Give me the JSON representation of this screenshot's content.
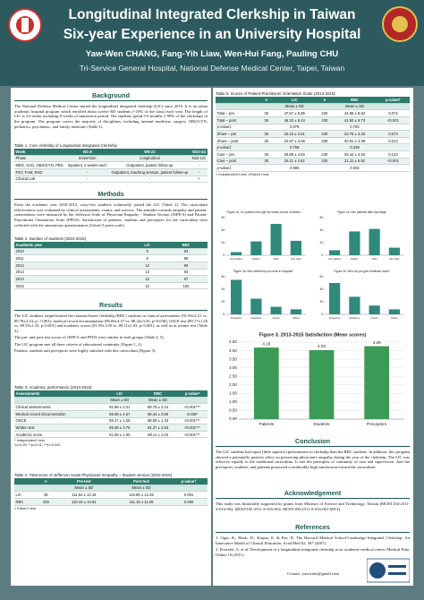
{
  "header": {
    "title_line1": "Longitudinal Integrated Clerkship in Taiwan",
    "title_line2": "Six-year Experience in an University Hospital",
    "authors": "Yaw-Wen CHANG, Fang-Yih Liaw, Wen-Hui Fang, Pauling CHU",
    "affiliation": "Tri-Service General Hospital, National Defense Medical Center, Taipei, Taiwan"
  },
  "background": {
    "heading": "Background",
    "text": "The National Defense Medical Center started the longitudinal integrated clerkship (LIC) since 2010. It is an urban academic hospital program which enrolled about twelve M5 students (~10% of the class) each year. The length of LIC is 24 weeks including 8 weeks of immersion period. The students spend 5-6 months (~90% of the clerkship) in the program. The program covers the majority of disciplines, including internal medicine, surgery, OBS/GYN, pediatrics, psychiatric, and family medicine (Table 1)."
  },
  "table1": {
    "caption": "Table 1. Core clerkship of Longitudinal Integrated Clerkship",
    "header": [
      "Week",
      "W1-8",
      "W9-22",
      "W23-24"
    ],
    "rows": [
      [
        "Phase",
        "Immersion",
        "Longitudinal",
        "Non-LIC"
      ],
      [
        "MED, SUG, OBS/GYN, PED",
        "Inpatient, 2 weeks each",
        "Outpatient, patient follow-up",
        "-"
      ],
      [
        "PSY, FAM, RAD",
        "-",
        "Outpatient, teaching session, patient follow-up",
        "-"
      ],
      [
        "Clinical Lab",
        "-",
        "-",
        "+"
      ]
    ]
  },
  "methods": {
    "heading": "Methods",
    "text": "From the academic year 2010-2015, sixty-five students voluntarily joined the LIC (Table 2). The curriculum effectiveness was evaluated by clinical assessments, exams, and surveys. The attitudes towards empathy and patient-centeredness were measured by the Jefferson Scale of Physician Empathy - Student Version (JSPE-S) and Patient-Practitioner Orientation Scale (PPOS). Satisfaction of patients, students and preceptors for the curriculum were collected with the anonymous questionnaires (Likert-5 point scale)."
  },
  "table2": {
    "caption": "Table 2. Number of students (2010-2015)",
    "header": [
      "Academic year",
      "LIC",
      "RBC"
    ],
    "rows": [
      [
        2010,
        9,
        84
      ],
      [
        2011,
        8,
        86
      ],
      [
        2012,
        12,
        96
      ],
      [
        2013,
        13,
        93
      ],
      [
        2014,
        12,
        97
      ],
      [
        2015,
        12,
        102
      ]
    ]
  },
  "results": {
    "heading": "Results",
    "paragraphs": [
      "The LIC students outperformed the rotation-based clerkship (RBC) students in clinical assessments (91.96±2.21 vs. 89.78±2.24, p< 0.001), medical record documentation (89.69±4.57 vs. 88.44±3.56, p=0.038), OSCE test (89.17±1.26 vs. 88.59±1.33, p<0.001) and academic scores (91.59±1.00 vs. 89.11±1.03, p<0.001), as well as in written test (Table 3).",
      "The pre- and post-test scores of JSPE-S and PPOS were similar in both groups (Table 4, 5).",
      "The LIC program met all three criteria of educational continuity (Figure 1, 2).",
      "Patients, students and preceptors were highly satisfied with this curriculum (Figure 3)."
    ]
  },
  "table3": {
    "caption": "Table 3. Academic performance (2010-2015)",
    "header": [
      "Assessments",
      "LIC",
      "RBC",
      "p-value*"
    ],
    "subheader": [
      null,
      "Mean ± SD",
      "Mean ± SD",
      null
    ],
    "rows": [
      [
        "Clinical assessments",
        "91.96 ± 2.21",
        "89.78 ± 2.24",
        "<0.001***"
      ],
      [
        "Medical record documentation",
        "89.69 ± 4.57",
        "88.44 ± 3.56",
        "0.038*"
      ],
      [
        "OSCE",
        "89.17 ± 1.26",
        "88.59 ± 1.33",
        "<0.001***"
      ],
      [
        "Written test",
        "89.39 ± 3.75",
        "84.37 ± 4.53",
        "<0.001***"
      ],
      [
        "Academic score",
        "91.59 ± 1.00",
        "89.11 ± 1.03",
        "<0.001***"
      ]
    ],
    "footnotes": [
      "* Independent t test",
      "*p<0.05; **p<0.01; ***p<0.001"
    ]
  },
  "table4": {
    "caption": "Table 4. Total score of Jefferson Scale Physicians' Empathy – Student version (2010-2015)",
    "header": [
      null,
      "n",
      "Pre-test",
      "Post-test",
      "p-value†"
    ],
    "subheader": [
      null,
      null,
      "Mean ± SD",
      "Mean ± SD",
      null
    ],
    "rows": [
      [
        "LIC",
        "48",
        "111.54 ± 12.16",
        "115.98 ± 12.46",
        "0.001"
      ],
      [
        "RBC",
        "439",
        "110.44 ± 10.81",
        "111.16 ± 11.06",
        "0.060"
      ]
    ],
    "footnotes": [
      "† Paired t test"
    ]
  },
  "table5": {
    "caption": "Table 5. Scores of Patient-Practitioner Orientation Scale (2013-2015)",
    "header": [
      null,
      "n",
      "LIC",
      "n",
      "RBC",
      "p-value†"
    ],
    "subheader": [
      null,
      null,
      "Mean ± SD",
      null,
      "Mean ± SD",
      null
    ],
    "rows": [
      [
        "Total – pre",
        "35",
        "47.57 ± 6.86",
        "230",
        "44.86 ± 8.63",
        "0.074"
      ],
      [
        "Total – post",
        "35",
        "46.20 ± 6.44",
        "230",
        "41.93 ± 9.73",
        "<0.001"
      ],
      [
        "p-value‡",
        null,
        "0.879",
        null,
        "0.782",
        null
      ],
      [
        "Share – pre",
        "35",
        "23.10 ± 3.51",
        "230",
        "22.75 ± 3.33",
        "0.573"
      ],
      [
        "Share – post",
        "35",
        "22.97 ± 3.56",
        "230",
        "20.81 ± 4.99",
        "0.013"
      ],
      [
        "p-value‡",
        null,
        "0.758",
        null,
        "0.239",
        null
      ],
      [
        "Care – pre",
        "35",
        "26.89 ± 4.84",
        "230",
        "25.44 ± 4.93",
        "0.123"
      ],
      [
        "Care – post",
        "35",
        "26.11 ± 4.62",
        "230",
        "21.11 ± 5.52",
        "<0.001"
      ],
      [
        "p-value‡",
        null,
        "0.906",
        null,
        "0.002",
        null
      ]
    ],
    "footnotes": [
      "† Independent t test; ‡Paired t test"
    ]
  },
  "chart_data": [
    {
      "type": "bar",
      "title": "Figure 1a. LIC patients through the whole course of illness",
      "categories": [
        "Very seldom",
        "Seldom",
        "Often",
        "Very often"
      ],
      "values": [
        5,
        22,
        50,
        23
      ],
      "color": "#2f8a7c",
      "ylim": [
        0,
        60
      ],
      "yticks": [
        0,
        20,
        40,
        60
      ],
      "grid": false
    },
    {
      "type": "bar",
      "title": "Figure 1b. See patients after discharge",
      "categories": [
        "Very seldom",
        "Seldom",
        "Often",
        "Very often"
      ],
      "values": [
        8,
        38,
        42,
        12
      ],
      "color": "#2f8a7c",
      "ylim": [
        0,
        60
      ],
      "yticks": [
        0,
        20,
        40,
        60
      ],
      "grid": false
    },
    {
      "type": "bar",
      "title": "Figure 2a. Who delivered you news in hospital?",
      "categories": [
        "Preceptors",
        "Residents",
        "Interns",
        "Others"
      ],
      "values": [
        55,
        25,
        12,
        8
      ],
      "color": "#2f8a7c",
      "ylim": [
        0,
        60
      ],
      "yticks": [
        0,
        20,
        40,
        60
      ],
      "grid": false
    },
    {
      "type": "bar",
      "title": "Figure 2b. Who do you give feedback most?",
      "categories": [
        "Preceptors",
        "Residents",
        "Interns",
        "Others"
      ],
      "values": [
        50,
        28,
        14,
        8
      ],
      "color": "#2f8a7c",
      "ylim": [
        0,
        60
      ],
      "yticks": [
        0,
        20,
        40,
        60
      ],
      "grid": false
    },
    {
      "type": "bar",
      "title": "Figure 3. 2013-2015 Satisfaction (Mean scores)",
      "categories": [
        "Patients",
        "Students",
        "Preceptors"
      ],
      "values": [
        4.18,
        4.03,
        4.26
      ],
      "color": "#3c9a57",
      "ylim": [
        0,
        4.5
      ],
      "yticks": [
        {
          "value": 0,
          "label": "0.00"
        },
        {
          "value": 0.5,
          "label": "0.50"
        },
        {
          "value": 1,
          "label": "1.00"
        },
        {
          "value": 1.5,
          "label": "1.50"
        },
        {
          "value": 2,
          "label": "2.00"
        },
        {
          "value": 2.5,
          "label": "2.50"
        },
        {
          "value": 3,
          "label": "3.00"
        },
        {
          "value": 3.5,
          "label": "3.50"
        },
        {
          "value": 4,
          "label": "4.00"
        },
        {
          "value": 4.5,
          "label": "4.50"
        }
      ],
      "grid": true,
      "data_labels": true
    }
  ],
  "conclusion": {
    "heading": "Conclusion",
    "text": "The LIC students had equal (little superior) performance in clerkship then the RBC students. In addition, this program showed a potentially positive effect on preserving physician's empathy during the year of the clerkship. The LIC was effective equally to the traditional curriculum. It met the principles of continuity of care and supervision. And the preceptors, students, and patients possessed considerably high satisfaction toward the curriculum."
  },
  "acknowledgement": {
    "heading": "Acknowledgement",
    "text": "This study was financially supported by grants from Ministry of Science and Technology, Taiwan (MOST104-2511-S-016-002, MOST105-2511-S-016-002, MOST106-2511-S-016-001-MY2)."
  },
  "references": {
    "heading": "References",
    "items": [
      "1. Ogur, B., Hirsh, D., Krupat, E. & Bor, D. The Harvard Medical School-Cambridge Integrated Clerkship: An Innovative Model of Clinical Education. Acad Med 82, 397 (2007).",
      "2. Poncelet, A. et al. Development of a longitudinal integrated clerkship at an academic medical center. Medical Educ Online 16 (2011)."
    ]
  },
  "contact": "Contact: yawwenc@gmail.com"
}
